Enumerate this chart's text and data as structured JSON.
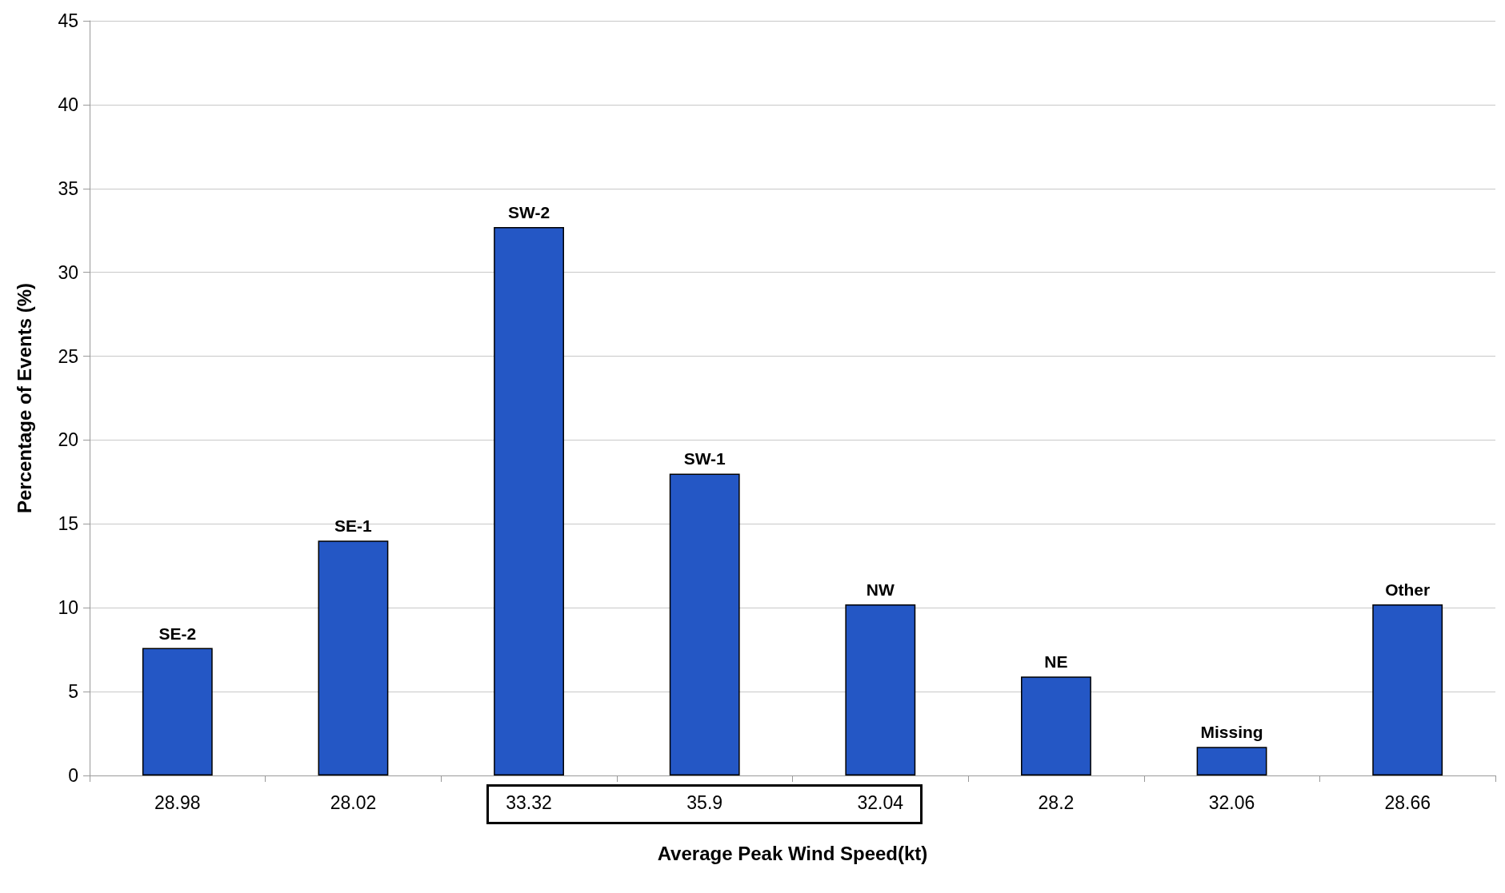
{
  "chart_data": {
    "type": "bar",
    "xlabel": "Average Peak Wind Speed(kt)",
    "ylabel": "Percentage of Events (%)",
    "categories": [
      "28.98",
      "28.02",
      "33.32",
      "35.9",
      "32.04",
      "28.2",
      "32.06",
      "28.66"
    ],
    "values": [
      7.6,
      14.0,
      32.7,
      18.0,
      10.2,
      5.9,
      1.7,
      10.2
    ],
    "value_labels": [
      "SE-2",
      "SE-1",
      "SW-2",
      "SW-1",
      "NW",
      "NE",
      "Missing",
      "Other"
    ],
    "color": "#2457c5",
    "ylim": [
      0,
      45
    ],
    "yticks": [
      0,
      5,
      10,
      15,
      20,
      25,
      30,
      35,
      40,
      45
    ],
    "grid": "y"
  }
}
